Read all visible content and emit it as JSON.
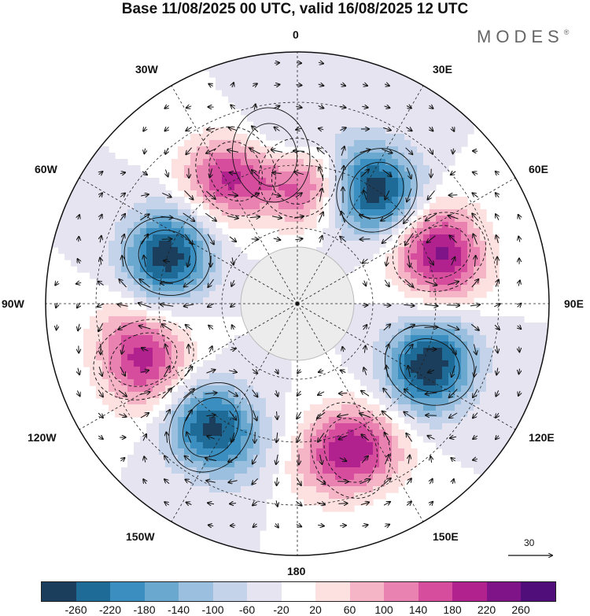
{
  "header": {
    "title": "Base 11/08/2025 00 UTC, valid 16/08/2025 12 UTC",
    "brand": "MODES",
    "brand_mark": "®"
  },
  "map": {
    "projection": "south-polar-stereographic",
    "longitude_labels": {
      "n0": "0",
      "n30e": "30E",
      "n60e": "60E",
      "n90e": "90E",
      "n120e": "120E",
      "n150e": "150E",
      "n180": "180",
      "n150w": "150W",
      "n120w": "120W",
      "n90w": "90W",
      "n60w": "60W",
      "n30w": "30W"
    },
    "wave_lobes": [
      {
        "lon": 0,
        "sign": 1,
        "amplitude": 240,
        "radius": 0.5
      },
      {
        "lon": 35,
        "sign": -1,
        "amplitude": 280,
        "radius": 0.55
      },
      {
        "lon": 70,
        "sign": 1,
        "amplitude": 260,
        "radius": 0.6
      },
      {
        "lon": 115,
        "sign": -1,
        "amplitude": 280,
        "radius": 0.58
      },
      {
        "lon": 160,
        "sign": 1,
        "amplitude": 240,
        "radius": 0.62
      },
      {
        "lon": -145,
        "sign": -1,
        "amplitude": 260,
        "radius": 0.6
      },
      {
        "lon": -110,
        "sign": 1,
        "amplitude": 230,
        "radius": 0.65
      },
      {
        "lon": -70,
        "sign": -1,
        "amplitude": 270,
        "radius": 0.55
      },
      {
        "lon": -25,
        "sign": 1,
        "amplitude": 290,
        "radius": 0.58
      },
      {
        "lon": -10,
        "sign": -1,
        "amplitude": 230,
        "radius": 0.6
      }
    ],
    "reference_vector_label": "30"
  },
  "colorbar": {
    "tick_labels": [
      "-260",
      "-220",
      "-180",
      "-140",
      "-100",
      "-60",
      "-20",
      "20",
      "60",
      "100",
      "140",
      "180",
      "220",
      "260"
    ],
    "colors": [
      "#1b3e5c",
      "#1f6b97",
      "#3b8fc0",
      "#6aa8d0",
      "#9bc0df",
      "#c5d3ea",
      "#e6e4f1",
      "#ffffff",
      "#fde0e0",
      "#f6b5c6",
      "#ea82b1",
      "#d64d9e",
      "#b2228f",
      "#7e1487",
      "#4f0e7a"
    ]
  }
}
